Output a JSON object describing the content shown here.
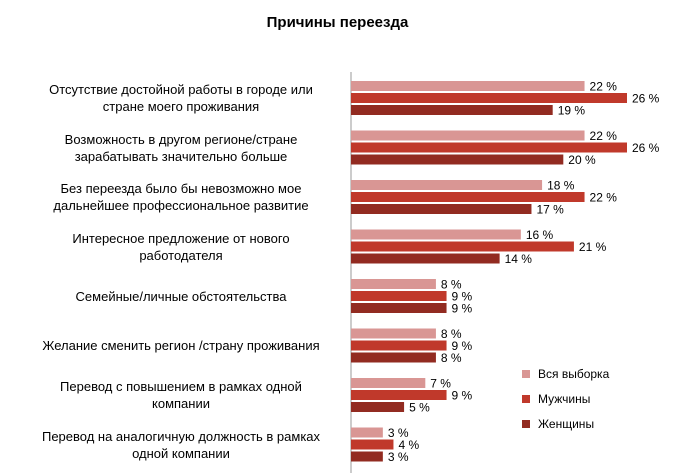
{
  "chart_data": {
    "type": "bar",
    "orientation": "horizontal",
    "title": "Причины переезда",
    "categories": [
      [
        "Отсутствие достойной  работы в городе или",
        "стране моего проживания"
      ],
      [
        "Возможность в другом регионе/стране",
        "зарабатывать значительно больше"
      ],
      [
        "Без переезда было бы невозможно мое",
        "дальнейшее профессиональное развитие"
      ],
      [
        "Интересное предложение от нового",
        "работодателя"
      ],
      [
        "Семейные/личные обстоятельства"
      ],
      [
        "Желание сменить регион /страну проживания"
      ],
      [
        "Перевод с повышением в рамках одной",
        "компании"
      ],
      [
        "Перевод  на аналогичную должность в рамках",
        "одной компании"
      ]
    ],
    "series": [
      {
        "name": "Вся выборка",
        "color": "#d99694",
        "values": [
          22,
          22,
          18,
          16,
          8,
          8,
          7,
          3
        ]
      },
      {
        "name": "Мужчины",
        "color": "#c0392b",
        "values": [
          26,
          26,
          22,
          21,
          9,
          9,
          9,
          4
        ]
      },
      {
        "name": "Женщины",
        "color": "#922b21",
        "values": [
          19,
          20,
          17,
          14,
          9,
          8,
          5,
          3
        ]
      }
    ],
    "value_suffix": " %",
    "xlim": [
      0,
      30
    ],
    "grid": false,
    "legend": "bottom-right"
  }
}
